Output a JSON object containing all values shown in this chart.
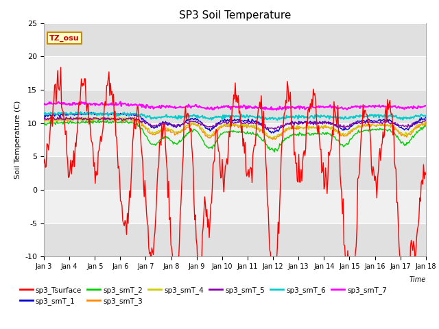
{
  "title": "SP3 Soil Temperature",
  "ylabel": "Soil Temperature (C)",
  "xlabel": "Time",
  "tz_label": "TZ_osu",
  "xlim": [
    0,
    15
  ],
  "ylim": [
    -10,
    25
  ],
  "yticks": [
    -10,
    -5,
    0,
    5,
    10,
    15,
    20,
    25
  ],
  "xtick_labels": [
    "Jan 3",
    "Jan 4",
    "Jan 5",
    "Jan 6",
    "Jan 7",
    "Jan 8",
    "Jan 9",
    "Jan 10",
    "Jan 11",
    "Jan 12",
    "Jan 13",
    "Jan 14",
    "Jan 15",
    "Jan 16",
    "Jan 17",
    "Jan 18"
  ],
  "bg_color": "#e8e8e8",
  "alt_bg_color": "#f5f5f5",
  "series_order": [
    "sp3_Tsurface",
    "sp3_smT_1",
    "sp3_smT_2",
    "sp3_smT_3",
    "sp3_smT_4",
    "sp3_smT_5",
    "sp3_smT_6",
    "sp3_smT_7"
  ],
  "series": {
    "sp3_Tsurface": {
      "color": "#ff0000",
      "lw": 1.0
    },
    "sp3_smT_1": {
      "color": "#0000cc",
      "lw": 1.0
    },
    "sp3_smT_2": {
      "color": "#00cc00",
      "lw": 1.0
    },
    "sp3_smT_3": {
      "color": "#ff8800",
      "lw": 1.0
    },
    "sp3_smT_4": {
      "color": "#cccc00",
      "lw": 1.0
    },
    "sp3_smT_5": {
      "color": "#8800aa",
      "lw": 1.0
    },
    "sp3_smT_6": {
      "color": "#00cccc",
      "lw": 1.5
    },
    "sp3_smT_7": {
      "color": "#ff00ff",
      "lw": 1.5
    }
  },
  "legend_row1": [
    "sp3_Tsurface",
    "sp3_smT_1",
    "sp3_smT_2",
    "sp3_smT_3",
    "sp3_smT_4",
    "sp3_smT_5"
  ],
  "legend_row2": [
    "sp3_smT_6",
    "sp3_smT_7"
  ]
}
